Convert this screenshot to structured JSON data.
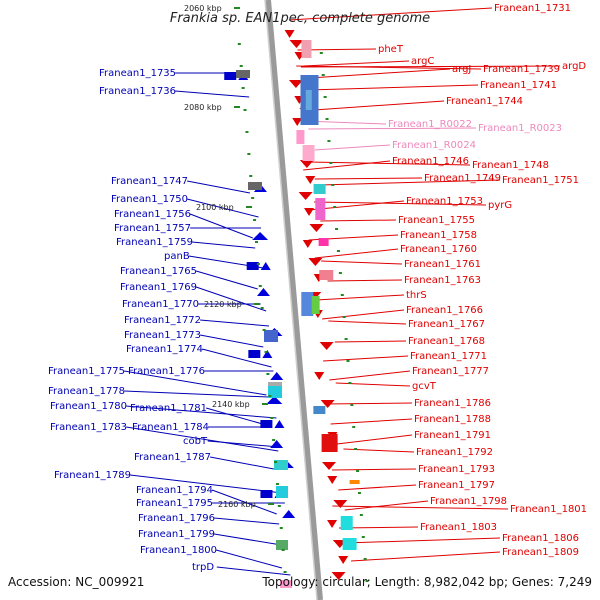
{
  "title": "Frankia sp. EAN1pec, complete genome",
  "footer": {
    "accession": "Accession: NC_009921",
    "summary": "Topology: circular; Length: 8,982,042 bp; Genes: 7,249"
  },
  "colors": {
    "forward_label": "#0000b4",
    "reverse_label": "#e00000",
    "rna_label": "#ee88bb",
    "axis": "#9a9a9a",
    "tick": "#228822"
  },
  "ticks": [
    "2060 kbp",
    "2080 kbp",
    "2100 kbp",
    "2120 kbp",
    "2140 kbp",
    "2160 kbp"
  ],
  "left_labels": [
    "Franean1_1735",
    "Franean1_1736",
    "Franean1_1747",
    "Franean1_1750",
    "Franean1_1756",
    "Franean1_1757",
    "Franean1_1759",
    "panB",
    "Franean1_1765",
    "Franean1_1769",
    "Franean1_1770",
    "Franean1_1772",
    "Franean1_1773",
    "Franean1_1774",
    "Franean1_1775",
    "Franean1_1776",
    "Franean1_1778",
    "Franean1_1780",
    "Franean1_1781",
    "Franean1_1783",
    "Franean1_1784",
    "cobT",
    "Franean1_1787",
    "Franean1_1789",
    "Franean1_1794",
    "Franean1_1795",
    "Franean1_1796",
    "Franean1_1799",
    "Franean1_1800",
    "trpD"
  ],
  "right_labels": [
    "Franean1_1731",
    "pheT",
    "argC",
    "argJ",
    "Franean1_1739",
    "argD",
    "Franean1_1741",
    "Franean1_1744",
    "Franean1_R0022",
    "Franean1_R0023",
    "Franean1_R0024",
    "Franean1_1746",
    "Franean1_1748",
    "Franean1_1749",
    "Franean1_1751",
    "Franean1_1753",
    "pyrG",
    "Franean1_1755",
    "Franean1_1758",
    "Franean1_1760",
    "Franean1_1761",
    "Franean1_1763",
    "thrS",
    "Franean1_1766",
    "Franean1_1767",
    "Franean1_1768",
    "Franean1_1771",
    "Franean1_1777",
    "gcvT",
    "Franean1_1786",
    "Franean1_1788",
    "Franean1_1791",
    "Franean1_1792",
    "Franean1_1793",
    "Franean1_1797",
    "Franean1_1798",
    "Franean1_1801",
    "Franean1_1803",
    "Franean1_1806",
    "Franean1_1809"
  ]
}
